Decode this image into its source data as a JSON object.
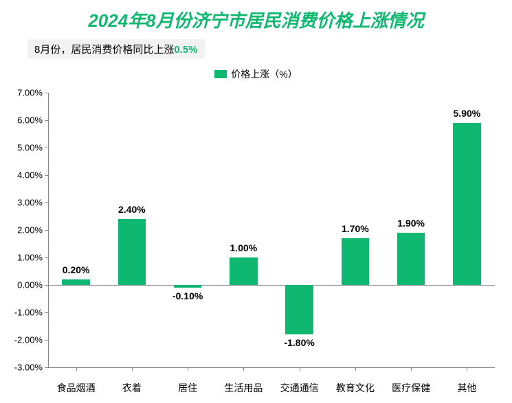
{
  "title": {
    "text": "2024年8月份济宁市居民消费价格上涨情况",
    "color": "#0fb871",
    "fontsize": 26
  },
  "subtitle": {
    "prefix": "8月份，居民消费价格同比上涨",
    "accent_value": "0.5%",
    "background": "#f2f2f2",
    "text_color": "#000000",
    "accent_color": "#0fb871",
    "fontsize": 15
  },
  "legend": {
    "label": "价格上涨（%）",
    "swatch_color": "#0fb871"
  },
  "chart": {
    "type": "bar",
    "categories": [
      "食品烟酒",
      "衣着",
      "居住",
      "生活用品",
      "交通通信",
      "教育文化",
      "医疗保健",
      "其他"
    ],
    "values": [
      0.2,
      2.4,
      -0.1,
      1.0,
      -1.8,
      1.7,
      1.9,
      5.9
    ],
    "value_labels": [
      "0.20%",
      "2.40%",
      "-0.10%",
      "1.00%",
      "-1.80%",
      "1.70%",
      "1.90%",
      "5.90%"
    ],
    "bar_color": "#0fb871",
    "bar_color_alt": "#13a567",
    "bar_width": 0.5,
    "ylim": [
      -3.0,
      7.0
    ],
    "ytick_step": 1.0,
    "ytick_labels": [
      "-3.00%",
      "-2.00%",
      "-1.00%",
      "0.00%",
      "1.00%",
      "2.00%",
      "3.00%",
      "4.00%",
      "5.00%",
      "6.00%",
      "7.00%"
    ],
    "background_color": "#ffffff",
    "axis_color": "#888888",
    "text_color": "#000000",
    "label_fontsize": 14,
    "value_label_fontsize": 14
  }
}
